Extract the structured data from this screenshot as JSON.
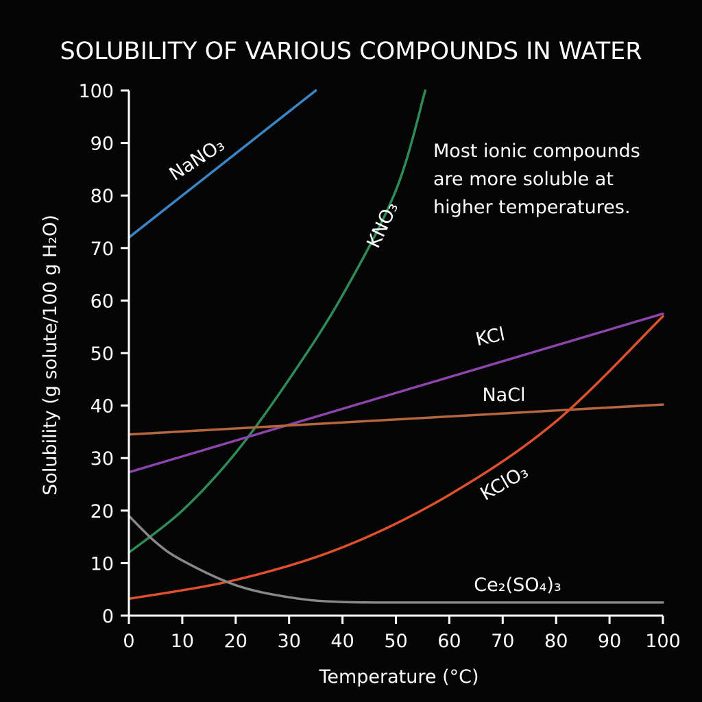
{
  "chart_data": {
    "type": "line",
    "title": "SOLUBILITY OF VARIOUS COMPOUNDS IN WATER",
    "xlabel": "Temperature (°C)",
    "ylabel": "Solubility (g solute/100 g H₂O)",
    "xlim": [
      0,
      100
    ],
    "ylim": [
      0,
      100
    ],
    "xticks": [
      0,
      10,
      20,
      30,
      40,
      50,
      60,
      70,
      80,
      90,
      100
    ],
    "yticks": [
      0,
      10,
      20,
      30,
      40,
      50,
      60,
      70,
      80,
      90,
      100
    ],
    "grid": false,
    "annotation": [
      "Most ionic compounds",
      "are more soluble at",
      "higher temperatures."
    ],
    "series": [
      {
        "name": "NaNO₃",
        "color": "#3a86c8",
        "x": [
          0,
          35
        ],
        "y": [
          72,
          100
        ]
      },
      {
        "name": "KNO₃",
        "color": "#2e8b57",
        "x": [
          0,
          10,
          20,
          30,
          40,
          50,
          55.5
        ],
        "y": [
          12,
          20,
          31,
          45,
          61,
          81,
          100
        ]
      },
      {
        "name": "KCl",
        "color": "#8e44ad",
        "x": [
          0,
          100
        ],
        "y": [
          27.3,
          57.5
        ]
      },
      {
        "name": "NaCl",
        "color": "#b5653f",
        "x": [
          0,
          100
        ],
        "y": [
          34.5,
          40.2
        ]
      },
      {
        "name": "KClO₃",
        "color": "#e0502e",
        "x": [
          0,
          20,
          40,
          60,
          80,
          100
        ],
        "y": [
          3.2,
          6.8,
          13,
          23,
          37,
          57
        ]
      },
      {
        "name": "Ce₂(SO₄)₃",
        "color": "#888888",
        "x": [
          0,
          5,
          10,
          20,
          30,
          40,
          60,
          100
        ],
        "y": [
          19,
          14,
          10.5,
          5.8,
          3.5,
          2.6,
          2.5,
          2.5
        ]
      }
    ]
  }
}
